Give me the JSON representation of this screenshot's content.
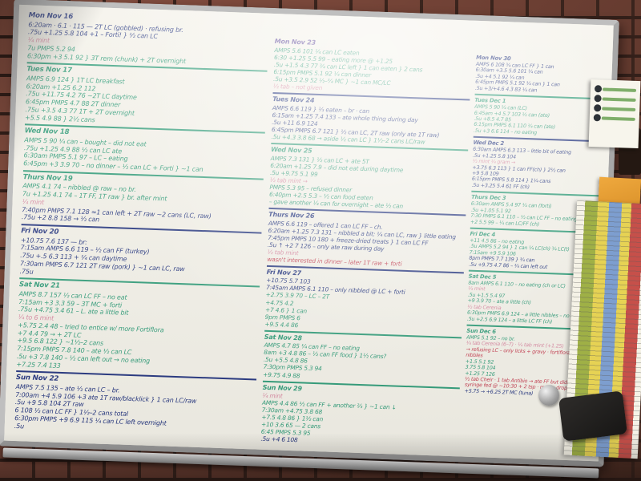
{
  "palette": {
    "navy": "#24357f",
    "blue": "#2a4693",
    "green": "#2f9c78",
    "pink": "#d887a0",
    "red": "#c43b4e",
    "purple": "#5c4699"
  },
  "board": {
    "columns": [
      {
        "days": [
          {
            "date": "Mon Nov 16",
            "color": "navy",
            "lines": [
              {
                "c": "navy",
                "t": "6:20am · 6.1 · 115 — 2T LC (gobbled) · refusing br."
              },
              {
                "c": "navy",
                "t": ".75u  +1.25  5.8  104  +1 – Forti! } ½ can LC"
              },
              {
                "c": "pink",
                "t": "¼ mint"
              },
              {
                "c": "green",
                "t": "7u  PMPS  5.2  94"
              },
              {
                "c": "green",
                "t": "6:30pm  +3  5.1  92  } 3T rem (chunk) + 2T overnight"
              }
            ]
          },
          {
            "date": "Tues Nov 17",
            "color": "green",
            "lines": [
              {
                "c": "green",
                "t": "AMPS  6.9  124  } 1T LC breakfast"
              },
              {
                "c": "green",
                "t": "6:20am  +1.25  6.2  112"
              },
              {
                "c": "green",
                "t": ".75u  +11.75  4.2  76  ~2T LC daytime"
              },
              {
                "c": "green",
                "t": "6:45pm  PMPS  4.7  88  2T dinner"
              },
              {
                "c": "green",
                "t": ".75u  +3.5  4.3  77  1T + 2T overnight"
              },
              {
                "c": "green",
                "t": "+5.5  4.9  88  } 2½ cans"
              }
            ]
          },
          {
            "date": "Wed Nov 18",
            "color": "green",
            "lines": [
              {
                "c": "green",
                "t": "AMPS  5  90  ¼ can – bought – did not eat"
              },
              {
                "c": "green",
                "t": ".75u  +1.25  4.9  88  ½ can LC ate"
              },
              {
                "c": "green",
                "t": "6:30am  PMPS  5.1  97  – LC – eating"
              },
              {
                "c": "green",
                "t": "6:45pm  +3  3.9  70  – no dinner – ½ can LC + Forti } ~1 can"
              }
            ]
          },
          {
            "date": "Thurs Nov 19",
            "color": "green",
            "lines": [
              {
                "c": "green",
                "t": "AMPS  4.1  74  – nibbled @ raw – no br."
              },
              {
                "c": "green",
                "t": "7u  +1.25  4.1  74  – 1T FF, 1T raw } br. after mint"
              },
              {
                "c": "pink",
                "t": "¼ mint"
              },
              {
                "c": "navy",
                "t": "7:40pm  PMPS  7.1  128  ≈1 can left + 2T raw  ~2 cans (LC, raw)"
              },
              {
                "c": "navy",
                "t": ".75u  +2  8.8  158  → ½ can"
              }
            ]
          },
          {
            "date": "Fri Nov 20",
            "color": "navy",
            "lines": [
              {
                "c": "navy",
                "t": "+10.75  7.6  137 — br:"
              },
              {
                "c": "navy",
                "t": "7:15am  AMPS  6.6  119  – ½ can FF (turkey)"
              },
              {
                "c": "navy",
                "t": ".75u  +.5  6.3  113  + ¼ can daytime"
              },
              {
                "c": "navy",
                "t": "7:30am  PMPS  6.7  121  2T raw (pork) } ~1 can LC, raw"
              },
              {
                "c": "navy",
                "t": ".75u"
              }
            ]
          },
          {
            "date": "Sat Nov 21",
            "color": "green",
            "lines": [
              {
                "c": "green",
                "t": "AMPS  8.7  157  ½ can LC FF – no eat"
              },
              {
                "c": "green",
                "t": "7:15am  +3  3.3  59  – 3T MC + forti"
              },
              {
                "c": "green",
                "t": ".75u  +4.75  3.4  61  – L. ate a little bit"
              },
              {
                "c": "pink",
                "t": "¼ to 6 mint"
              },
              {
                "c": "green",
                "t": "+5.75  2.4  48  – tried to entice w/ more Fortiflora"
              },
              {
                "c": "green",
                "t": "+7  4.4  79  → + 2T LC"
              },
              {
                "c": "green",
                "t": "+9.5  6.8  122  } ~1½–2 cans"
              },
              {
                "c": "green",
                "t": "7:15pm  PMPS  7.8  140  – ate ½ can LC"
              },
              {
                "c": "green",
                "t": ".5u  +3  7.8  140  – ½ can left out → no eating"
              },
              {
                "c": "green",
                "t": "+7.25  7.4  133"
              }
            ]
          },
          {
            "date": "Sun Nov 22",
            "color": "navy",
            "lines": [
              {
                "c": "navy",
                "t": "AMPS  7.5  135 – ate ½ can LC – br."
              },
              {
                "c": "navy",
                "t": "7:00am  +4  5.9  106  +3 ate 1T raw/blacklick } 1 can LC/raw"
              },
              {
                "c": "navy",
                "t": ".5u  +9  5.8  104  2T raw"
              },
              {
                "c": "navy",
                "t": "6  108  ½ can LC FF } 1½–2 cans total"
              },
              {
                "c": "navy",
                "t": "6:30pm  PMPS  +9  6.9  115  ¼ can LC left overnight"
              },
              {
                "c": "navy",
                "t": ".5u"
              }
            ]
          }
        ]
      },
      {
        "days": [
          {
            "date": "Mon Nov 23",
            "color": "purple",
            "lines": [
              {
                "c": "green",
                "t": "AMPS  5.6  101  ¼ can LC eaten"
              },
              {
                "c": "green",
                "t": "6:30  +1.25  5.5  99  – eating more @ +1.25"
              },
              {
                "c": "green",
                "t": ".5u  +1.5  4.3  77  ¾ can LC left } 1 can eaten } 2 cans"
              },
              {
                "c": "green",
                "t": "6:15pm  PMPS  5.1  92  ¼ can dinner"
              },
              {
                "c": "green",
                "t": ".5u  +3.5  2.9  52  ½–¾ MC } ~1 can MC/LC"
              },
              {
                "c": "pink",
                "t": "½ tab – not given"
              }
            ]
          },
          {
            "date": "Tues Nov 24",
            "color": "navy",
            "lines": [
              {
                "c": "navy",
                "t": "AMPS  6.6  119  } ⅓ eaten – br · can"
              },
              {
                "c": "navy",
                "t": "6:15am  +1.25  7.4  133  – ate whole thing during day"
              },
              {
                "c": "navy",
                "t": ".5u  +11  6.9  124"
              },
              {
                "c": "navy",
                "t": "6:45pm  PMPS  6.7  121  } ½ can LC, 2T raw (only ate 1T raw)"
              },
              {
                "c": "green",
                "t": ".5u  +4.3  3.8  68  → aside ½ can LC } 1½–2 cans LC/raw"
              }
            ]
          },
          {
            "date": "Wed Nov 25",
            "color": "green",
            "lines": [
              {
                "c": "green",
                "t": "AMPS  7.3  131  } ½ can LC + ate 5T"
              },
              {
                "c": "green",
                "t": "6:20am  +1.25  7.9  – did not eat during daytime"
              },
              {
                "c": "green",
                "t": ".5u  +9.75  5.1  99"
              },
              {
                "c": "pink",
                "t": "½ tab mint →"
              },
              {
                "c": "green",
                "t": "PMPS  5.3  95  – refused dinner"
              },
              {
                "c": "green",
                "t": "6:40pm  +2.5  5.3  – ½ can food eaten"
              },
              {
                "c": "green",
                "t": "– gave another ¼ can for overnight – ate ½ can"
              }
            ]
          },
          {
            "date": "Thurs Nov 26",
            "color": "navy",
            "lines": [
              {
                "c": "navy",
                "t": "AMPS  6.6  119  – offered 1 can LC FF – ch."
              },
              {
                "c": "navy",
                "t": "6:20am  +1.25  7.3  131  – nibbled a bit: ¼ can LC, raw } little eating"
              },
              {
                "c": "navy",
                "t": "7:45pm  PMPS  10  180  + freeze-dried treats } 1 can LC FF"
              },
              {
                "c": "navy",
                "t": ".5u ↑  +2  7  126  – only ate raw during day"
              },
              {
                "c": "pink",
                "t": "½ tab mint"
              },
              {
                "c": "red",
                "t": "wasn't interested in dinner – later 1T raw + forti"
              }
            ]
          },
          {
            "date": "Fri Nov 27",
            "color": "navy",
            "lines": [
              {
                "c": "navy",
                "t": "+10.75  5.7  103"
              },
              {
                "c": "navy",
                "t": "7:45am  AMPS  6.1  110  – only nibbled @ LC + forti"
              },
              {
                "c": "green",
                "t": "+2.75  3.9  70  – LC – 2T"
              },
              {
                "c": "green",
                "t": "+4.75  4.2"
              },
              {
                "c": "green",
                "t": "+7  4.6  } 1 can"
              },
              {
                "c": "green",
                "t": "9pm  PMPS  6"
              },
              {
                "c": "green",
                "t": "+9.5  4.4  86"
              }
            ]
          },
          {
            "date": "Sat Nov 28",
            "color": "green",
            "lines": [
              {
                "c": "green",
                "t": "AMPS  4.7  85  ¼ can FF – no eating"
              },
              {
                "c": "green",
                "t": "8am  +3  4.8  86  – ½ can FF food } 1½ cans?"
              },
              {
                "c": "green",
                "t": ".5u  +5.5  4.8  86"
              },
              {
                "c": "green",
                "t": "7:30pm  PMPS  5.3  94"
              },
              {
                "c": "green",
                "t": "+9.75  4.9  88"
              }
            ]
          },
          {
            "date": "Sun Nov 29",
            "color": "green",
            "lines": [
              {
                "c": "pink",
                "t": "¼ mint"
              },
              {
                "c": "green",
                "t": "AMPS  4.4  86  ½ can FF + another ⅔ } ~1 can ↓"
              },
              {
                "c": "green",
                "t": "7:30am  +4.75  3.8  68"
              },
              {
                "c": "green",
                "t": "+7.5  4.8  86  } 1½ can"
              },
              {
                "c": "green",
                "t": "+10  3.6  65  — 2 cans"
              },
              {
                "c": "green",
                "t": "6:45  PMPS  5.3  95"
              },
              {
                "c": "navy",
                "t": ".5u  +4  6  108"
              }
            ]
          }
        ]
      },
      {
        "days": [
          {
            "date": "Mon Nov 30",
            "color": "navy",
            "lines": [
              {
                "c": "navy",
                "t": "AMPS  6  108  ¾ can LC FF } 1 can"
              },
              {
                "c": "navy",
                "t": "6:30am  +3.5  5.6  101  ¼ can"
              },
              {
                "c": "navy",
                "t": ".5u  +4  5.1  92  ¼ can"
              },
              {
                "c": "navy",
                "t": "6:45pm  PMPS  5.1  92  ¼ can } 1 can"
              },
              {
                "c": "navy",
                "t": ".5u  +3/+4.6  4.3  83  ¼ can"
              }
            ]
          },
          {
            "date": "Tues Dec 1",
            "color": "green",
            "lines": [
              {
                "c": "green",
                "t": "AMPS  5  90  ¼ can (LC)"
              },
              {
                "c": "green",
                "t": "6:45am  +4  5.7  103  ½ can (ate)"
              },
              {
                "c": "green",
                "t": ".5u  +8.5  4.7  85"
              },
              {
                "c": "green",
                "t": "6:15pm  PMPS  6.1  110  ¼ can (ate)"
              },
              {
                "c": "green",
                "t": ".5u  +3  6.6  114  – no eating"
              }
            ]
          },
          {
            "date": "Wed Dec 2",
            "color": "navy",
            "lines": [
              {
                "c": "navy",
                "t": "6:30am  AMPS  6.3  113  – little bit of eating"
              },
              {
                "c": "navy",
                "t": ".5u  +1.25  5.8  104"
              },
              {
                "c": "pink",
                "t": "½ mint ¼ gram →"
              },
              {
                "c": "navy",
                "t": "+3.75  6.3  113  } 1 can FF(ch) } 2½ can"
              },
              {
                "c": "navy",
                "t": "+9  5.8  109"
              },
              {
                "c": "navy",
                "t": "6:15pm  PMPS  5.8  114  } 1¼ cans"
              },
              {
                "c": "navy",
                "t": ".5u  +3.25  5.4  61  FF (ch)"
              }
            ]
          },
          {
            "date": "Thurs Dec 3",
            "color": "green",
            "lines": [
              {
                "c": "green",
                "t": "6:30am  AMPS  5.4  97  ¼ can (forti)"
              },
              {
                "c": "green",
                "t": ".5u  +1.05  5.1  92"
              },
              {
                "c": "green",
                "t": "7:30  PMPS  6.1  110  – ½ can LC FF – no eating"
              },
              {
                "c": "green",
                "t": "+2  5.5  99  – ¼ can LC/FF (ch)"
              }
            ]
          },
          {
            "date": "Fri Dec 4",
            "color": "green",
            "lines": [
              {
                "c": "green",
                "t": "+11  4.5  86  – no eating"
              },
              {
                "c": "green",
                "t": ".5u  AMPS  5.2  94  } 1 can ¼ LC(ch) ¾ LC(t)"
              },
              {
                "c": "green",
                "t": "7:15am  +9  5.9  106"
              },
              {
                "c": "navy",
                "t": "8pm  PMPS  7.7  139  } ¾ can"
              },
              {
                "c": "navy",
                "t": ".5u  +9.75  4.7  86  – ¾ can left out"
              }
            ]
          },
          {
            "date": "Sat Dec 5",
            "color": "green",
            "lines": [
              {
                "c": "green",
                "t": "8am  AMPS  6.1  110  – no eating (ch or LC)"
              },
              {
                "c": "pink",
                "t": "¼ mint"
              },
              {
                "c": "green",
                "t": ".5u  +1.5  5.4  97"
              },
              {
                "c": "green",
                "t": "+9  3.9  70  – ate a little (ch)"
              },
              {
                "c": "pink",
                "t": "½ tab Cerenia"
              },
              {
                "c": "green",
                "t": "6:30pm  PMPS  6.9  124  – a little nibbles – no dinner"
              },
              {
                "c": "green",
                "t": ".5u  +2.5  6.9  124  – a little LC FF (ch)"
              }
            ]
          },
          {
            "date": "Sun Dec 6",
            "color": "green",
            "lines": [
              {
                "c": "green",
                "t": "AMPS  5.1  92  – no br."
              },
              {
                "c": "pink",
                "t": "¼ tab Cerenia (6–7) · ¼ tab mint (+1.25)"
              },
              {
                "c": "red",
                "t": "→ refusing LC – only licks + gravy · fortiflora · raw nibbles"
              },
              {
                "c": "green",
                "t": "+1.5  5.1  92"
              },
              {
                "c": "green",
                "t": "3.75  5.8  104"
              },
              {
                "c": "green",
                "t": "+1.25  7  126"
              },
              {
                "c": "red",
                "t": "½ tab Cheir · 1 tab Antibio → ate FF but didn't eat well · syringe fed @ ~10:30 + 2 tsp · maple dropper antibiotic"
              },
              {
                "c": "navy",
                "t": "+5.75 → +6.25    2T MC (tuna)"
              }
            ]
          }
        ]
      }
    ]
  },
  "attachments": {
    "glucose_sheet_icon": "color-grid-sheet",
    "sticky_note_icon": "sticky-note",
    "sticky_note_color": "#e09a36",
    "info_card_icon": "covid-info-card",
    "magnet_icon": "round-magnet",
    "eraser_icon": "board-eraser"
  }
}
